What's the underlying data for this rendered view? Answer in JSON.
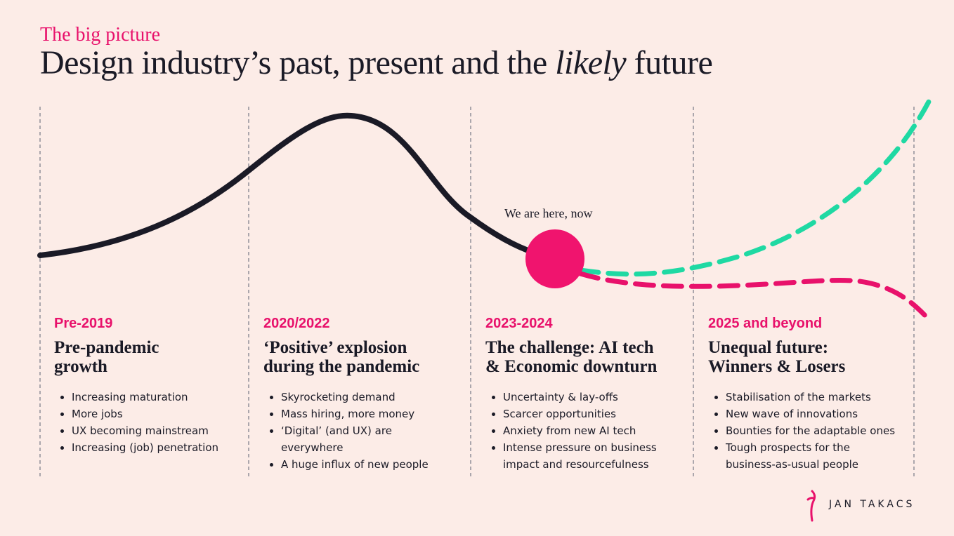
{
  "header": {
    "kicker": "The big picture",
    "title": {
      "before": "Design industry’s past, present and the ",
      "emphasis": "likely",
      "after": " future"
    }
  },
  "annotation": "We are here, now",
  "columns": [
    {
      "period": "Pre-2019",
      "heading": [
        "Pre-pandemic",
        "growth"
      ],
      "bullets": [
        "Increasing maturation",
        "More jobs",
        "UX becoming mainstream",
        "Increasing (job) penetration"
      ]
    },
    {
      "period": "2020/2022",
      "heading": [
        "‘Positive’ explosion",
        "during the pandemic"
      ],
      "bullets": [
        "Skyrocketing demand",
        "Mass hiring, more money",
        "‘Digital’ (and UX) are everywhere",
        "A huge influx of new people"
      ]
    },
    {
      "period": "2023-2024",
      "heading": [
        "The challenge: AI tech",
        "& Economic downturn"
      ],
      "bullets": [
        "Uncertainty & lay-offs",
        "Scarcer opportunities",
        "Anxiety from new AI tech",
        "Intense pressure on business impact and resourcefulness"
      ]
    },
    {
      "period": "2025 and beyond",
      "heading": [
        "Unequal future:",
        "Winners & Losers"
      ],
      "bullets": [
        "Stabilisation of the markets",
        "New wave of innovations",
        "Bounties for the adaptable ones",
        "Tough prospects for the business-as-usual people"
      ]
    }
  ],
  "brand": "JAN TAKACS"
}
